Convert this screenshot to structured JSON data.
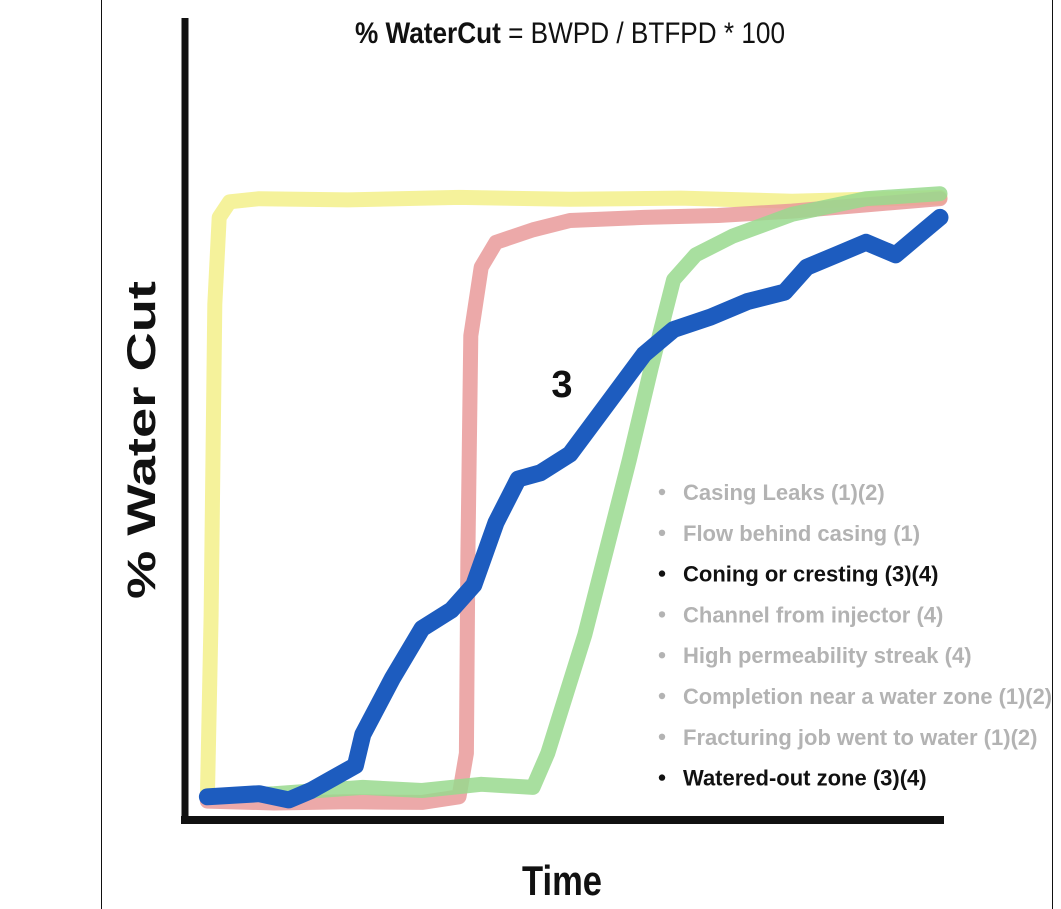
{
  "chart_data": {
    "type": "line",
    "title_bold": "% WaterCut",
    "title_rest": " = BWPD / BTFPD * 100",
    "xlabel": "Time",
    "ylabel": "% Water Cut",
    "xlim": [
      0,
      100
    ],
    "ylim": [
      0,
      100
    ],
    "grid": false,
    "annotation": {
      "text": "3",
      "x": 50,
      "y": 70
    },
    "series": [
      {
        "id": "casing-leak",
        "color": "#f3f08a",
        "highlighted": false,
        "points": [
          [
            1,
            1
          ],
          [
            1.5,
            30
          ],
          [
            2,
            80
          ],
          [
            2.6,
            94
          ],
          [
            4,
            96.5
          ],
          [
            8,
            97
          ],
          [
            20,
            96.8
          ],
          [
            35,
            97.2
          ],
          [
            50,
            96.9
          ],
          [
            65,
            97.1
          ],
          [
            80,
            96.6
          ],
          [
            100,
            97.2
          ]
        ]
      },
      {
        "id": "flow-behind-casing",
        "color": "#e99a9a",
        "highlighted": false,
        "points": [
          [
            1,
            0.3
          ],
          [
            10,
            0
          ],
          [
            20,
            0.2
          ],
          [
            30,
            0.1
          ],
          [
            35,
            1
          ],
          [
            36,
            8
          ],
          [
            36.2,
            40
          ],
          [
            36.6,
            75
          ],
          [
            38,
            86
          ],
          [
            40,
            90
          ],
          [
            45,
            92
          ],
          [
            50,
            93.5
          ],
          [
            60,
            94
          ],
          [
            70,
            94.3
          ],
          [
            80,
            95
          ],
          [
            90,
            96
          ],
          [
            100,
            97
          ]
        ]
      },
      {
        "id": "channel-from-injector",
        "color": "#99d98e",
        "highlighted": false,
        "points": [
          [
            1,
            1
          ],
          [
            10,
            1.5
          ],
          [
            22,
            2.5
          ],
          [
            30,
            2
          ],
          [
            38,
            3
          ],
          [
            45,
            2.5
          ],
          [
            47,
            8
          ],
          [
            52,
            27
          ],
          [
            55,
            41
          ],
          [
            58,
            55
          ],
          [
            61,
            70
          ],
          [
            64,
            84
          ],
          [
            67,
            88
          ],
          [
            72,
            91
          ],
          [
            80,
            94.5
          ],
          [
            90,
            97
          ],
          [
            100,
            97.8
          ]
        ]
      },
      {
        "id": "coning-or-cresting",
        "color": "#1d5cbf",
        "highlighted": true,
        "points": [
          [
            1,
            1
          ],
          [
            8,
            1.5
          ],
          [
            12,
            0.5
          ],
          [
            15,
            2
          ],
          [
            18,
            4
          ],
          [
            21,
            6
          ],
          [
            22,
            11
          ],
          [
            26,
            20
          ],
          [
            30,
            28
          ],
          [
            34,
            31
          ],
          [
            37,
            35
          ],
          [
            40,
            45
          ],
          [
            43,
            52
          ],
          [
            46,
            53
          ],
          [
            50,
            56
          ],
          [
            55,
            64
          ],
          [
            60,
            72
          ],
          [
            64,
            76
          ],
          [
            69,
            78
          ],
          [
            74,
            80.5
          ],
          [
            79,
            82
          ],
          [
            82,
            86
          ],
          [
            86,
            88
          ],
          [
            90,
            90
          ],
          [
            94,
            88
          ],
          [
            98,
            92
          ],
          [
            100,
            94
          ]
        ]
      }
    ],
    "legend": {
      "placement": "lower-right",
      "items": [
        {
          "label": "Casing Leaks (1)(2)",
          "highlighted": false
        },
        {
          "label": "Flow behind casing (1)",
          "highlighted": false
        },
        {
          "label": "Coning or cresting (3)(4)",
          "highlighted": true
        },
        {
          "label": "Channel from injector (4)",
          "highlighted": false
        },
        {
          "label": "High permeability streak (4)",
          "highlighted": false
        },
        {
          "label": "Completion near a water zone (1)(2)",
          "highlighted": false
        },
        {
          "label": "Fracturing job went to water (1)(2)",
          "highlighted": false
        },
        {
          "label": "Watered-out zone (3)(4)",
          "highlighted": true
        }
      ]
    },
    "colors": {
      "axis": "#111111",
      "legend_muted": "#b3b3b3",
      "legend_active": "#111111"
    }
  }
}
